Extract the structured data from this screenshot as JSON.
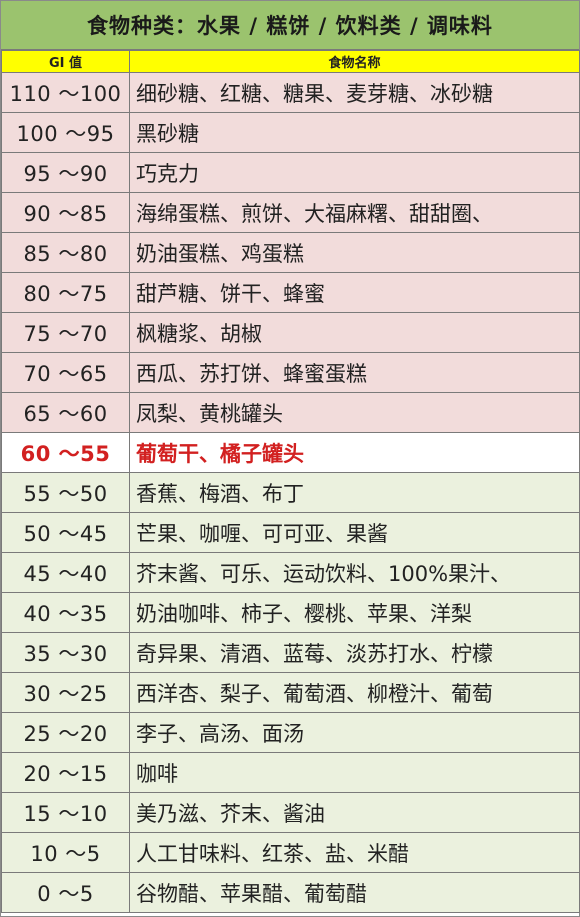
{
  "title": "食物种类：水果 / 糕饼 / 饮料类 / 调味料",
  "headers": {
    "gi": "GI 值",
    "foods": "食物名称"
  },
  "colors": {
    "title_bg": "#9bc36e",
    "header_bg": "#ffff00",
    "high_gi_row": "#f2dcdb",
    "highlight_row": "#ffffff",
    "highlight_text": "#d22020",
    "low_gi_row": "#ebf1de"
  },
  "rows": [
    {
      "gi": "110 ～100",
      "foods": "细砂糖、红糖、糖果、麦芽糖、冰砂糖",
      "style": "pink"
    },
    {
      "gi": "100 ～95",
      "foods": "黑砂糖",
      "style": "pink"
    },
    {
      "gi": "95 ～90",
      "foods": "巧克力",
      "style": "pink"
    },
    {
      "gi": "90 ～85",
      "foods": "海绵蛋糕、煎饼、大福麻糬、甜甜圈、",
      "style": "pink"
    },
    {
      "gi": "85 ～80",
      "foods": "奶油蛋糕、鸡蛋糕",
      "style": "pink"
    },
    {
      "gi": "80 ～75",
      "foods": "甜芦糖、饼干、蜂蜜",
      "style": "pink"
    },
    {
      "gi": "75 ～70",
      "foods": "枫糖浆、胡椒",
      "style": "pink"
    },
    {
      "gi": "70 ～65",
      "foods": "西瓜、苏打饼、蜂蜜蛋糕",
      "style": "pink"
    },
    {
      "gi": "65 ～60",
      "foods": "凤梨、黄桃罐头",
      "style": "pink"
    },
    {
      "gi": "60 ～55",
      "foods": "葡萄干、橘子罐头",
      "style": "white"
    },
    {
      "gi": "55 ～50",
      "foods": "香蕉、梅酒、布丁",
      "style": "green"
    },
    {
      "gi": "50 ～45",
      "foods": "芒果、咖喱、可可亚、果酱",
      "style": "green"
    },
    {
      "gi": "45 ～40",
      "foods": "芥末酱、可乐、运动饮料、100%果汁、",
      "style": "green"
    },
    {
      "gi": "40 ～35",
      "foods": "奶油咖啡、柿子、樱桃、苹果、洋梨",
      "style": "green"
    },
    {
      "gi": "35 ～30",
      "foods": "奇异果、清酒、蓝莓、淡苏打水、柠檬",
      "style": "green"
    },
    {
      "gi": "30 ～25",
      "foods": "西洋杏、梨子、葡萄酒、柳橙汁、葡萄",
      "style": "green"
    },
    {
      "gi": "25 ～20",
      "foods": "李子、高汤、面汤",
      "style": "green"
    },
    {
      "gi": "20 ～15",
      "foods": "咖啡",
      "style": "green"
    },
    {
      "gi": "15 ～10",
      "foods": "美乃滋、芥末、酱油",
      "style": "green"
    },
    {
      "gi": "10 ～5",
      "foods": "人工甘味料、红茶、盐、米醋",
      "style": "green"
    },
    {
      "gi": "0 ～5",
      "foods": "谷物醋、苹果醋、葡萄醋",
      "style": "green"
    }
  ]
}
